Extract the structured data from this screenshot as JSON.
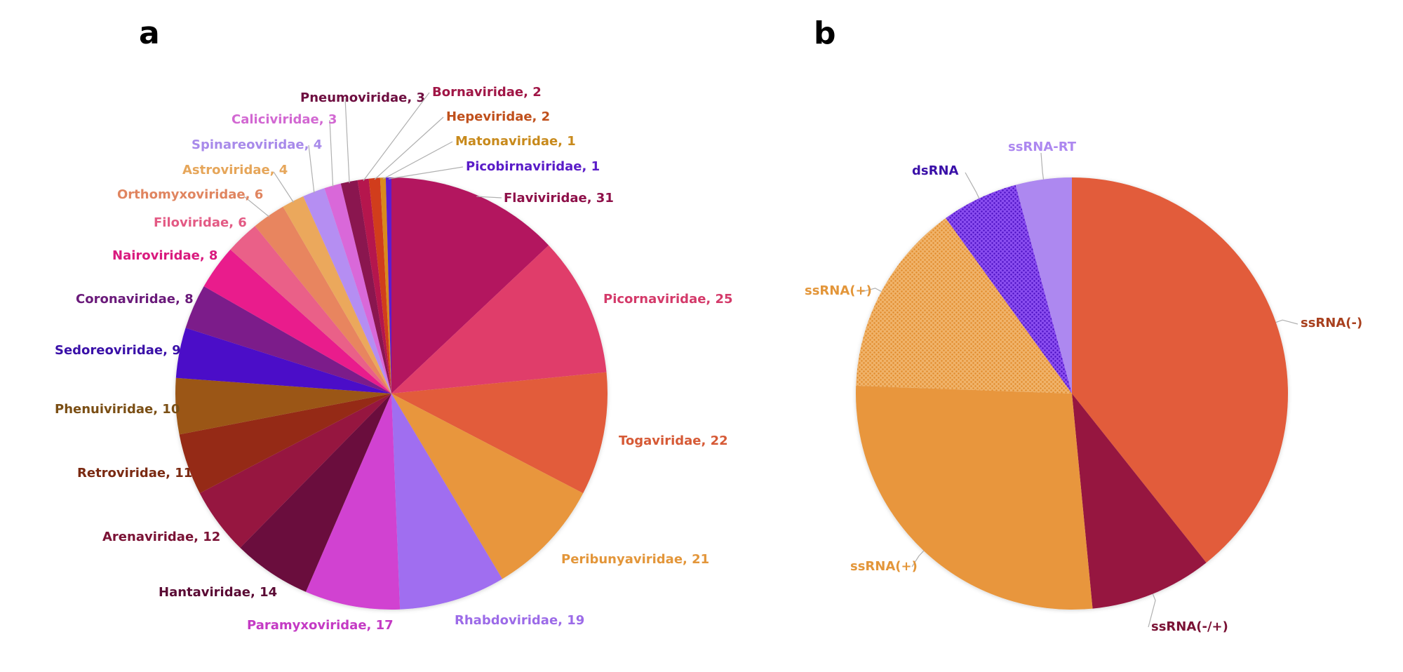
{
  "chart_data": [
    {
      "panel": "a",
      "type": "pie",
      "title": "",
      "start": "top, clockwise",
      "slices": [
        {
          "label": "Flaviviridae",
          "value": 31,
          "color": "#b3135e"
        },
        {
          "label": "Picornaviridae",
          "value": 25,
          "color": "#e03e6a"
        },
        {
          "label": "Togaviridae",
          "value": 22,
          "color": "#e25c3b"
        },
        {
          "label": "Peribunyaviridae",
          "value": 21,
          "color": "#e8963c"
        },
        {
          "label": "Rhabdoviridae",
          "value": 19,
          "color": "#a06ef0"
        },
        {
          "label": "Paramyxoviridae",
          "value": 17,
          "color": "#d142d1"
        },
        {
          "label": "Hantaviridae",
          "value": 14,
          "color": "#6b0a3e"
        },
        {
          "label": "Arenaviridae",
          "value": 12,
          "color": "#961540"
        },
        {
          "label": "Retroviridae",
          "value": 11,
          "color": "#952c14"
        },
        {
          "label": "Phenuiviridae",
          "value": 10,
          "color": "#9b5614"
        },
        {
          "label": "Sedoreoviridae",
          "value": 9,
          "color": "#4b10c8"
        },
        {
          "label": "Coronaviridae",
          "value": 8,
          "color": "#7b1a8a"
        },
        {
          "label": "Nairoviridae",
          "value": 8,
          "color": "#e91e8c"
        },
        {
          "label": "Filoviridae",
          "value": 6,
          "color": "#ea6088"
        },
        {
          "label": "Orthomyxoviridae",
          "value": 6,
          "color": "#e8855e"
        },
        {
          "label": "Astroviridae",
          "value": 4,
          "color": "#eba85c"
        },
        {
          "label": "Spinareoviridae",
          "value": 4,
          "color": "#b58ef2"
        },
        {
          "label": "Caliciviridae",
          "value": 3,
          "color": "#d968d9"
        },
        {
          "label": "Pneumoviridae",
          "value": 3,
          "color": "#8a1250"
        },
        {
          "label": "Bornaviridae",
          "value": 2,
          "color": "#b5174e"
        },
        {
          "label": "Hepeviridae",
          "value": 2,
          "color": "#d13c1c"
        },
        {
          "label": "Matonaviridae",
          "value": 1,
          "color": "#d98a1c"
        },
        {
          "label": "Picobirnaviridae",
          "value": 1,
          "color": "#5b1dd0"
        }
      ],
      "label_colors": {
        "Flaviviridae": "#8e1049",
        "Picornaviridae": "#d43a6a",
        "Togaviridae": "#d65a36",
        "Peribunyaviridae": "#e3963a",
        "Rhabdoviridae": "#9c6be8",
        "Paramyxoviridae": "#c43ac4",
        "Hantaviridae": "#5a0a34",
        "Arenaviridae": "#7a1235",
        "Retroviridae": "#7a2a12",
        "Phenuiviridae": "#7a4e14",
        "Sedoreoviridae": "#3a10a8",
        "Coronaviridae": "#6a1a7a",
        "Nairoviridae": "#d91a7e",
        "Filoviridae": "#e35a84",
        "Orthomyxoviridae": "#e08560",
        "Astroviridae": "#e6a65a",
        "Spinareoviridae": "#a88aea",
        "Caliciviridae": "#d268d2",
        "Pneumoviridae": "#6e0e40",
        "Bornaviridae": "#a01646",
        "Hepeviridae": "#c0501c",
        "Matonaviridae": "#c88a1c",
        "Picobirnaviridae": "#5a1cc8"
      }
    },
    {
      "panel": "b",
      "type": "pie",
      "title": "",
      "start": "top, clockwise",
      "slices": [
        {
          "label": "ssRNA(-)",
          "value": 103,
          "color": "#e25c3b",
          "label_color": "#a8401e",
          "pattern": "none"
        },
        {
          "label": "ssRNA(-/+)",
          "value": 24,
          "color": "#961540",
          "label_color": "#7a1235",
          "pattern": "none"
        },
        {
          "label": "ssRNA(+)",
          "value": 71,
          "color": "#e8963c",
          "label_color": "#e3963a",
          "pattern": "none"
        },
        {
          "label": "ssRNA(+)",
          "value": 38,
          "color": "#e8963c",
          "label_color": "#e3963a",
          "pattern": "dots"
        },
        {
          "label": "dsRNA",
          "value": 15,
          "color": "#6a22d8",
          "label_color": "#3a10a8",
          "pattern": "dots"
        },
        {
          "label": "ssRNA-RT",
          "value": 11,
          "color": "#ad88f0",
          "label_color": "#ad88f0",
          "pattern": "none"
        }
      ]
    }
  ],
  "panels": {
    "a": "a",
    "b": "b"
  }
}
